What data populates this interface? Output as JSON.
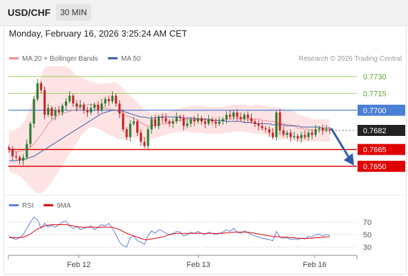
{
  "header": {
    "pair": "USD/CHF",
    "timeframe": "30 MIN",
    "datetime": "Monday, February 16, 2026 3:25:24 AM CET"
  },
  "legend": {
    "ma20": "MA 20 + Bollinger Bands",
    "ma50": "MA 50",
    "credit": "Research © 2026 Trading Central",
    "rsi": "RSI",
    "ma9": "9MA"
  },
  "colors": {
    "candle_up": "#2e7d32",
    "candle_down": "#c62828",
    "bollinger_fill": "#fde3e3",
    "ma20": "#f08c8c",
    "ma50": "#3a5ea8",
    "resistance": "#4a7fd6",
    "support": "#e00000",
    "target_level": "#9ccc65",
    "rsi": "#5b7fd8",
    "rsi_ma": "#e00000"
  },
  "chart_data": [
    {
      "type": "candlestick",
      "ylim": [
        7640,
        7740
      ],
      "ylim_note": "price x 10000",
      "x_tick_labels": [
        "Feb 12",
        "Feb 13",
        "Feb 16"
      ],
      "levels": [
        {
          "label": "0.7730",
          "value": 0.773,
          "kind": "target"
        },
        {
          "label": "0.7715",
          "value": 0.7715,
          "kind": "target"
        },
        {
          "label": "0.7700",
          "value": 0.77,
          "kind": "resistance"
        },
        {
          "label": "0.7682",
          "value": 0.7682,
          "kind": "last"
        },
        {
          "label": "0.7665",
          "value": 0.7665,
          "kind": "support"
        },
        {
          "label": "0.7650",
          "value": 0.765,
          "kind": "support"
        }
      ],
      "close": [
        7665,
        7659,
        7658,
        7655,
        7658,
        7670,
        7688,
        7710,
        7724,
        7718,
        7696,
        7702,
        7695,
        7700,
        7698,
        7704,
        7708,
        7713,
        7706,
        7703,
        7705,
        7700,
        7698,
        7702,
        7705,
        7700,
        7706,
        7710,
        7708,
        7713,
        7706,
        7697,
        7683,
        7676,
        7688,
        7690,
        7680,
        7672,
        7668,
        7683,
        7692,
        7686,
        7694,
        7693,
        7690,
        7688,
        7690,
        7694,
        7693,
        7686,
        7688,
        7692,
        7690,
        7693,
        7690,
        7688,
        7692,
        7690,
        7688,
        7690,
        7692,
        7696,
        7694,
        7698,
        7694,
        7692,
        7696,
        7693,
        7690,
        7688,
        7686,
        7684,
        7683,
        7680,
        7676,
        7698,
        7682,
        7678,
        7680,
        7676,
        7677,
        7675,
        7678,
        7676,
        7680,
        7678,
        7683,
        7684,
        7682,
        7683,
        7682
      ],
      "ma20": [
        7664,
        7663,
        7663,
        7663,
        7664,
        7665,
        7667,
        7670,
        7674,
        7678,
        7683,
        7688,
        7691,
        7694,
        7696,
        7697,
        7698,
        7699,
        7700,
        7701,
        7703,
        7704,
        7705,
        7705,
        7705,
        7703,
        7703,
        7702,
        7701,
        7701,
        7700,
        7698,
        7697,
        7695,
        7694,
        7693,
        7691,
        7689,
        7687,
        7686,
        7686,
        7687,
        7687,
        7688,
        7688,
        7689,
        7690,
        7691,
        7691,
        7692,
        7692,
        7692,
        7692,
        7692,
        7692,
        7691,
        7691,
        7691,
        7691,
        7691,
        7691,
        7692,
        7692,
        7693,
        7693,
        7693,
        7693,
        7692,
        7692,
        7692,
        7692,
        7691,
        7691,
        7690,
        7690,
        7689,
        7688,
        7688,
        7687,
        7687,
        7686,
        7684,
        7684,
        7683,
        7683,
        7682,
        7682,
        7682,
        7682,
        7682,
        7682
      ],
      "ma50": [
        7655,
        7655,
        7655,
        7656,
        7656,
        7657,
        7658,
        7659,
        7661,
        7663,
        7665,
        7667,
        7669,
        7671,
        7673,
        7675,
        7677,
        7679,
        7681,
        7683,
        7685,
        7687,
        7689,
        7691,
        7693,
        7695,
        7697,
        7698,
        7699,
        7700,
        7700,
        7700,
        7699,
        7698,
        7697,
        7696,
        7695,
        7694,
        7694,
        7693,
        7693,
        7693,
        7694,
        7694,
        7694,
        7694,
        7694,
        7694,
        7694,
        7693,
        7693,
        7693,
        7693,
        7692,
        7692,
        7692,
        7692,
        7691,
        7691,
        7691,
        7691,
        7690,
        7690,
        7690,
        7690,
        7690,
        7689,
        7689,
        7689,
        7688,
        7688,
        7688,
        7688,
        7688,
        7687,
        7687,
        7687,
        7687,
        7686,
        7686,
        7686,
        7686,
        7685,
        7685,
        7685,
        7685,
        7685,
        7685,
        7684,
        7684,
        7684
      ],
      "band_width": [
        18,
        19,
        20,
        22,
        25,
        30,
        36,
        42,
        48,
        52,
        55,
        56,
        55,
        53,
        50,
        46,
        42,
        38,
        34,
        30,
        27,
        24,
        22,
        20,
        20,
        20,
        21,
        22,
        23,
        24,
        25,
        24,
        23,
        21,
        19,
        17,
        16,
        15,
        14,
        13,
        12,
        12,
        11,
        11,
        10,
        10,
        10,
        10,
        11,
        11,
        11,
        12,
        12,
        12,
        12,
        12,
        12,
        12,
        12,
        12,
        12,
        12,
        12,
        12,
        12,
        12,
        12,
        12,
        12,
        13,
        13,
        13,
        13,
        13,
        13,
        14,
        14,
        14,
        13,
        13,
        13,
        12,
        12,
        11,
        11,
        10,
        10,
        10,
        10,
        10,
        10
      ]
    },
    {
      "type": "line",
      "title": "RSI",
      "ylim": [
        20,
        80
      ],
      "y_tick_labels": [
        "70",
        "50",
        "30"
      ],
      "series": [
        {
          "name": "RSI",
          "values": [
            48,
            44,
            42,
            45,
            50,
            60,
            70,
            78,
            74,
            60,
            68,
            62,
            65,
            62,
            66,
            70,
            72,
            64,
            60,
            63,
            58,
            60,
            62,
            64,
            58,
            62,
            66,
            64,
            68,
            60,
            50,
            38,
            32,
            30,
            45,
            48,
            40,
            38,
            34,
            48,
            56,
            52,
            58,
            56,
            52,
            50,
            52,
            55,
            54,
            48,
            50,
            54,
            52,
            55,
            52,
            50,
            54,
            52,
            50,
            52,
            54,
            58,
            55,
            60,
            54,
            52,
            56,
            53,
            50,
            48,
            46,
            44,
            43,
            42,
            40,
            55,
            46,
            44,
            45,
            42,
            43,
            42,
            44,
            43,
            47,
            46,
            50,
            51,
            48,
            50,
            49
          ]
        },
        {
          "name": "9MA",
          "values": [
            45,
            45,
            45,
            45,
            46,
            48,
            51,
            55,
            59,
            62,
            64,
            65,
            66,
            66,
            66,
            66,
            66,
            65,
            64,
            63,
            62,
            62,
            62,
            62,
            62,
            62,
            62,
            62,
            62,
            62,
            60,
            58,
            55,
            52,
            50,
            48,
            46,
            44,
            42,
            42,
            43,
            44,
            45,
            46,
            48,
            50,
            51,
            52,
            52,
            52,
            52,
            52,
            52,
            52,
            52,
            52,
            52,
            52,
            52,
            52,
            52,
            53,
            53,
            54,
            54,
            54,
            54,
            54,
            53,
            52,
            51,
            50,
            49,
            48,
            47,
            47,
            46,
            46,
            46,
            45,
            45,
            44,
            44,
            44,
            44,
            44,
            45,
            45,
            46,
            46,
            47
          ]
        }
      ]
    }
  ]
}
